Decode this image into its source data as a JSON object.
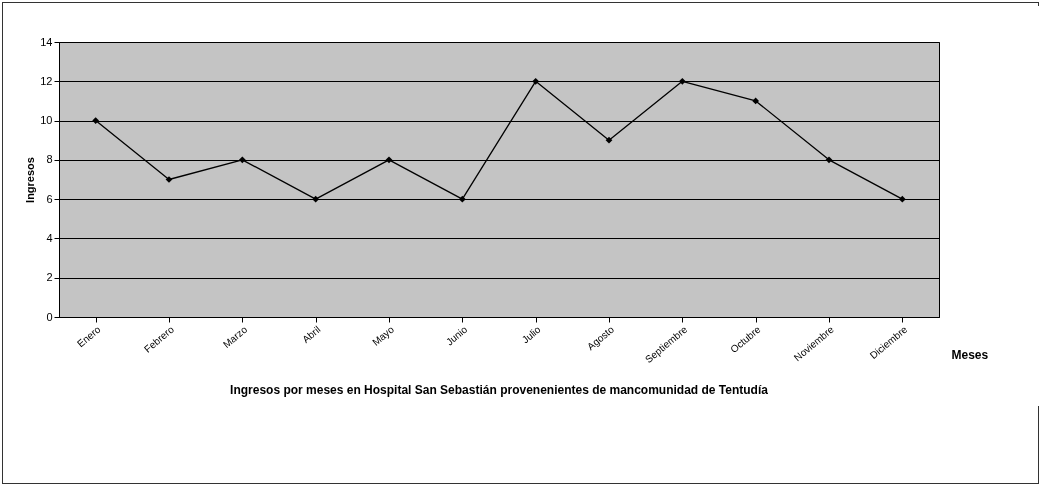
{
  "chart_data": {
    "type": "line",
    "title": "Ingresos por meses en Hospital San Sebastián provenenientes de mancomunidad de Tentudía",
    "xlabel": "Meses",
    "ylabel": "Ingresos",
    "categories": [
      "Enero",
      "Febrero",
      "Marzo",
      "Abril",
      "Mayo",
      "Junio",
      "Julio",
      "Agosto",
      "Septiembre",
      "Octubre",
      "Noviembre",
      "Diciembre"
    ],
    "series": [
      {
        "color": "#000000",
        "values": [
          10,
          7,
          8,
          6,
          8,
          6,
          12,
          9,
          12,
          11,
          8,
          6
        ]
      }
    ],
    "ylim": [
      0,
      14
    ],
    "yticks": [
      0,
      2,
      4,
      6,
      8,
      10,
      12,
      14
    ],
    "grid": "y",
    "marker": "diamond",
    "legend": false
  }
}
